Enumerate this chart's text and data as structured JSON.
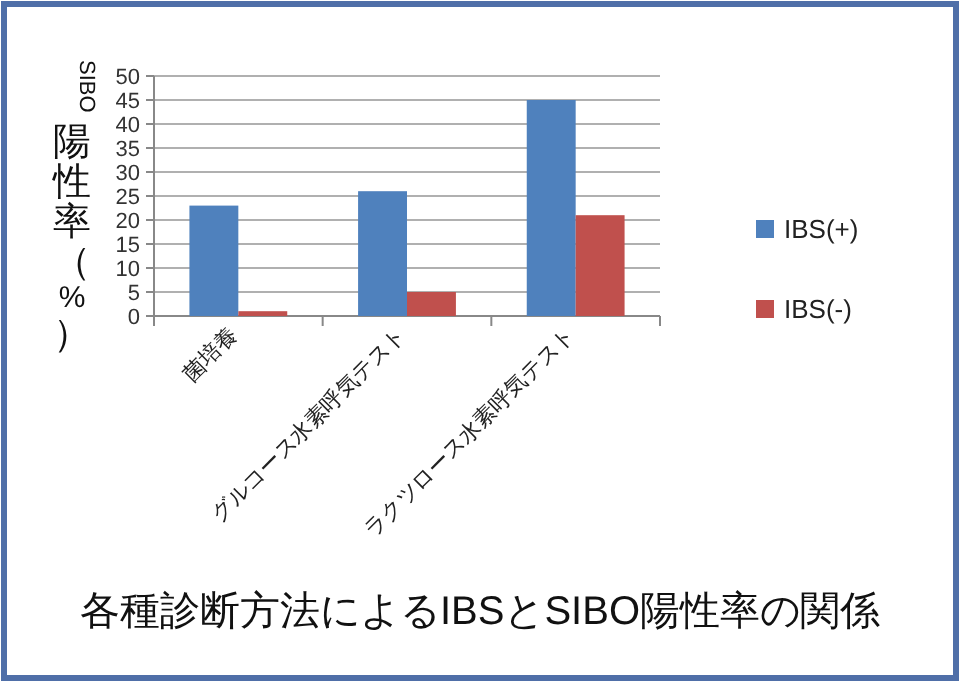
{
  "chart_data": {
    "type": "bar",
    "title": "各種診断方法によるIBSとSIBO陽性率の関係",
    "ylabel": "SIBO陽性率（%）",
    "categories": [
      "菌培養",
      "グルコース水素呼気テスト",
      "ラクツロース水素呼気テスト"
    ],
    "series": [
      {
        "name": "IBS(+)",
        "color": "#4f81bd",
        "values": [
          23,
          26,
          45
        ]
      },
      {
        "name": "IBS(-)",
        "color": "#c0504d",
        "values": [
          1,
          5,
          21
        ]
      }
    ],
    "ylim": [
      0,
      50
    ],
    "yticks": [
      0,
      5,
      10,
      15,
      20,
      25,
      30,
      35,
      40,
      45,
      50
    ],
    "grid": "y",
    "legend": "right"
  }
}
